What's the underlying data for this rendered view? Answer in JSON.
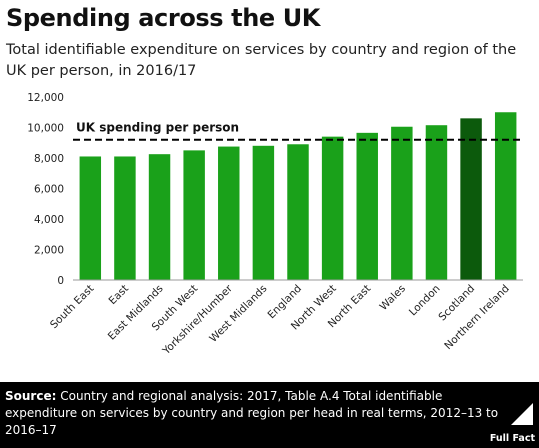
{
  "header": {
    "title": "Spending across the UK",
    "subtitle": "Total identifiable expenditure on services by country and region of the UK per person, in 2016/17"
  },
  "chart_data": {
    "type": "bar",
    "categories": [
      "South East",
      "East",
      "East Midlands",
      "South West",
      "Yorkshire/Humber",
      "West Midlands",
      "England",
      "North West",
      "North East",
      "Wales",
      "London",
      "Scotland",
      "Northern Ireland"
    ],
    "values": [
      8100,
      8100,
      8250,
      8500,
      8750,
      8800,
      8900,
      9400,
      9650,
      10050,
      10150,
      10600,
      11000
    ],
    "highlight_category": "Scotland",
    "colors": {
      "bar": "#1aa11a",
      "highlight": "#0c5a0c",
      "reference_line": "#000000",
      "axis": "#999999"
    },
    "ylim": [
      0,
      12000
    ],
    "yticks": [
      "0",
      "2,000",
      "4,000",
      "6,000",
      "8,000",
      "10,000",
      "12,000"
    ],
    "ytick_values": [
      0,
      2000,
      4000,
      6000,
      8000,
      10000,
      12000
    ],
    "reference": {
      "label": "UK spending per person",
      "value": 9200
    },
    "grid": false,
    "legend": "none"
  },
  "footer": {
    "source_label": "Source:",
    "source_text": " Country and regional analysis: 2017, Table A.4  Total identifiable expenditure on services by country and region per head in real terms, 2012–13 to 2016–17",
    "logo_text": "Full Fact",
    "logo_icon": "full-fact-logo"
  }
}
